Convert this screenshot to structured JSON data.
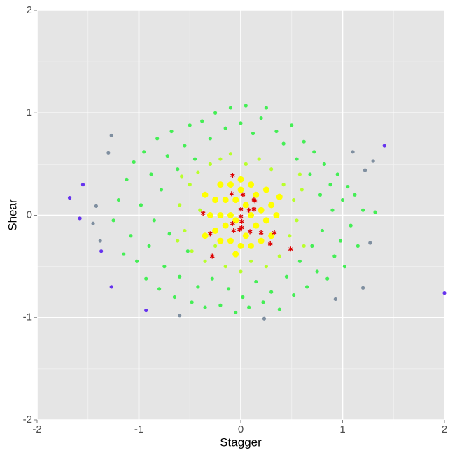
{
  "chart_data": {
    "type": "scatter",
    "x_label": "Stagger",
    "y_label": "Shear",
    "xlim": [
      -2,
      2
    ],
    "ylim": [
      -2,
      2
    ],
    "xticks": [
      -2,
      -1,
      0,
      1,
      2
    ],
    "yticks": [
      -2,
      -1,
      0,
      1,
      2
    ],
    "grid": true,
    "series": [
      {
        "color": "#44ee55",
        "marker": "circle",
        "x": [
          -1.12,
          -1.08,
          -1.05,
          -1.02,
          -0.98,
          -0.95,
          -0.93,
          -0.9,
          -0.88,
          -0.85,
          -0.82,
          -0.8,
          -0.78,
          -0.75,
          -0.72,
          -0.7,
          -0.68,
          -0.65,
          -0.62,
          -0.6,
          -0.55,
          -0.52,
          -0.5,
          -0.48,
          -0.45,
          -0.42,
          -0.38,
          -0.35,
          -0.3,
          -0.28,
          -0.25,
          -0.2,
          -0.15,
          -0.12,
          -0.1,
          -0.05,
          0,
          0.02,
          0.05,
          0.08,
          0.12,
          0.15,
          0.2,
          0.22,
          0.25,
          0.3,
          0.35,
          0.38,
          0.42,
          0.45,
          0.5,
          0.52,
          0.55,
          0.58,
          0.62,
          0.65,
          0.68,
          0.7,
          0.72,
          0.75,
          0.78,
          0.8,
          0.82,
          0.85,
          0.88,
          0.9,
          0.92,
          0.95,
          0.98,
          1.0,
          1.02,
          1.05,
          1.08,
          1.12,
          1.15,
          1.2,
          1.32,
          -1.25,
          -1.2,
          -1.15
        ],
        "values": [
          0.35,
          -0.2,
          0.52,
          -0.45,
          0.1,
          0.62,
          -0.62,
          -0.3,
          0.4,
          -0.05,
          0.75,
          -0.72,
          0.25,
          -0.5,
          0.58,
          -0.18,
          0.82,
          -0.8,
          0.45,
          -0.6,
          0.68,
          -0.35,
          0.88,
          -0.85,
          0.55,
          -0.7,
          0.92,
          -0.9,
          0.75,
          -0.62,
          1.0,
          -0.88,
          0.85,
          -0.72,
          1.05,
          -0.95,
          0.9,
          -0.8,
          1.07,
          -0.9,
          0.8,
          -0.65,
          0.95,
          -0.85,
          1.05,
          -0.75,
          0.82,
          -0.92,
          0.7,
          -0.6,
          0.88,
          -0.78,
          0.55,
          -0.45,
          0.72,
          -0.7,
          0.4,
          -0.3,
          0.62,
          -0.55,
          0.2,
          -0.15,
          0.5,
          -0.62,
          0.3,
          0.05,
          -0.4,
          0.4,
          -0.25,
          0.15,
          -0.5,
          0.28,
          -0.1,
          0.2,
          -0.3,
          0.05,
          0.03,
          -0.05,
          0.15,
          -0.38
        ]
      },
      {
        "color": "#b8ff2a",
        "marker": "circle",
        "x": [
          -0.6,
          -0.55,
          -0.5,
          -0.48,
          -0.42,
          -0.4,
          -0.35,
          -0.3,
          -0.25,
          -0.2,
          -0.15,
          -0.1,
          0,
          0.05,
          0.1,
          0.18,
          0.25,
          0.3,
          0.38,
          0.42,
          0.48,
          0.52,
          0.55,
          0.6,
          0.62,
          -0.62,
          -0.58,
          0.58
        ],
        "values": [
          0.1,
          -0.15,
          0.3,
          -0.35,
          0.42,
          0.05,
          -0.45,
          0.5,
          -0.3,
          0.55,
          -0.5,
          0.6,
          -0.55,
          0.5,
          -0.45,
          0.55,
          -0.5,
          0.45,
          -0.4,
          0.3,
          -0.2,
          0.15,
          -0.05,
          0.25,
          -0.3,
          -0.25,
          0.38,
          0.4
        ]
      },
      {
        "color": "#ffff00",
        "marker": "circle",
        "x": [
          -0.3,
          -0.25,
          -0.25,
          -0.2,
          -0.2,
          -0.2,
          -0.15,
          -0.15,
          -0.1,
          -0.1,
          -0.1,
          -0.05,
          -0.05,
          0,
          0,
          0,
          0.05,
          0.05,
          0.1,
          0.1,
          0.1,
          0.15,
          0.15,
          0.2,
          0.2,
          0.25,
          0.25,
          0.3,
          0.3,
          0.35,
          -0.35,
          -0.35,
          0.38,
          -0.05
        ],
        "values": [
          0,
          0.15,
          -0.15,
          0.3,
          0,
          -0.25,
          0.15,
          -0.1,
          0.3,
          0,
          -0.25,
          0.15,
          -0.05,
          0.35,
          0.25,
          -0.3,
          0.1,
          -0.2,
          0.3,
          0,
          -0.3,
          0.2,
          -0.1,
          0.05,
          -0.25,
          0.25,
          -0.05,
          0.1,
          -0.2,
          0,
          0.2,
          -0.2,
          0.18,
          -0.38
        ]
      },
      {
        "color": "#7f8fa0",
        "marker": "circle",
        "x": [
          -1.27,
          -1.3,
          -1.45,
          -1.38,
          -1.42,
          -0.6,
          0.23,
          1.1,
          1.3,
          1.2,
          0.93,
          1.27,
          1.22
        ],
        "values": [
          0.78,
          0.61,
          -0.08,
          -0.25,
          0.09,
          -0.98,
          -1.01,
          0.62,
          0.53,
          -0.71,
          -0.82,
          -0.27,
          0.44
        ]
      },
      {
        "color": "#6633ee",
        "marker": "circle",
        "x": [
          -1.68,
          -1.55,
          -1.58,
          -1.27,
          -0.93,
          2.0,
          1.41,
          -1.37
        ],
        "values": [
          0.17,
          0.3,
          -0.03,
          -0.7,
          -0.93,
          -0.76,
          0.68,
          -0.35
        ]
      },
      {
        "color": "#dd0000",
        "marker": "star",
        "x": [
          -0.08,
          -0.09,
          0.02,
          0.13,
          0.14,
          -0.37,
          0,
          0.08,
          0.13,
          0,
          0.01,
          -0.08,
          0.01,
          -0.01,
          -0.07,
          0.09,
          0.2,
          0.33,
          -0.3,
          0.29,
          0.49,
          -0.28
        ],
        "values": [
          0.39,
          0.21,
          0.2,
          0.15,
          0.14,
          0.02,
          0.06,
          0.05,
          0.06,
          -0.01,
          -0.06,
          -0.08,
          -0.12,
          -0.14,
          -0.15,
          -0.16,
          -0.17,
          -0.17,
          -0.18,
          -0.28,
          -0.33,
          -0.4
        ]
      }
    ]
  }
}
